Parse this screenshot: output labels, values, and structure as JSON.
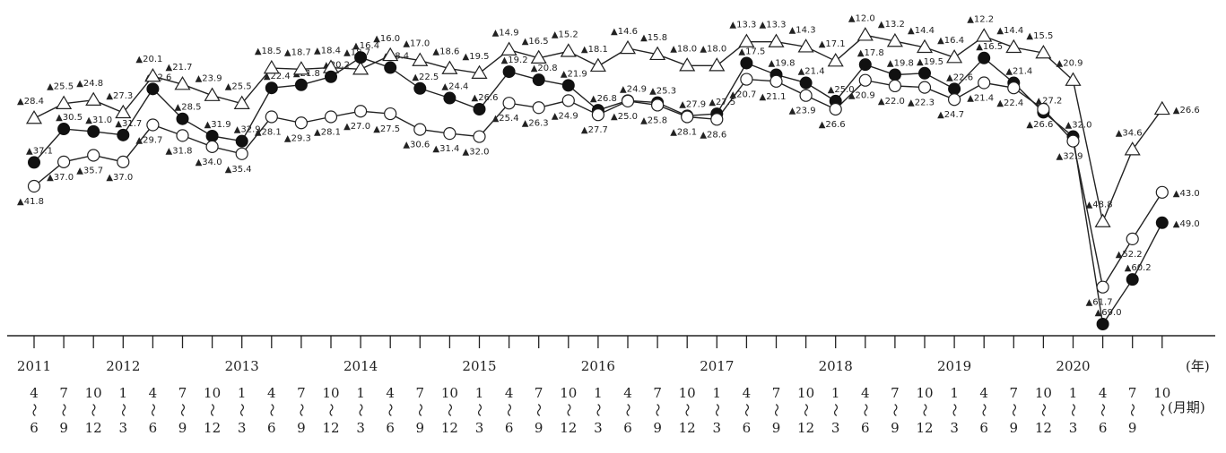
{
  "chart_data": {
    "type": "line",
    "x_axis": {
      "years": [
        "2011",
        "2012",
        "2013",
        "2014",
        "2015",
        "2016",
        "2017",
        "2018",
        "2019",
        "2020"
      ],
      "year_unit": "(年)",
      "period_unit": "(月期)",
      "periods": [
        [
          "4",
          "6"
        ],
        [
          "7",
          "9"
        ],
        [
          "10",
          "12"
        ],
        [
          "1",
          "3"
        ],
        [
          "4",
          "6"
        ],
        [
          "7",
          "9"
        ],
        [
          "10",
          "12"
        ],
        [
          "1",
          "3"
        ],
        [
          "4",
          "6"
        ],
        [
          "7",
          "9"
        ],
        [
          "10",
          "12"
        ],
        [
          "1",
          "3"
        ],
        [
          "4",
          "6"
        ],
        [
          "7",
          "9"
        ],
        [
          "10",
          "12"
        ],
        [
          "1",
          "3"
        ],
        [
          "4",
          "6"
        ],
        [
          "7",
          "9"
        ],
        [
          "10",
          "12"
        ],
        [
          "1",
          "3"
        ],
        [
          "4",
          "6"
        ],
        [
          "7",
          "9"
        ],
        [
          "10",
          "12"
        ],
        [
          "1",
          "3"
        ],
        [
          "4",
          "6"
        ],
        [
          "7",
          "9"
        ],
        [
          "10",
          "12"
        ],
        [
          "1",
          "3"
        ],
        [
          "4",
          "6"
        ],
        [
          "7",
          "9"
        ],
        [
          "10",
          "12"
        ],
        [
          "1",
          "3"
        ],
        [
          "4",
          "6"
        ],
        [
          "7",
          "9"
        ],
        [
          "10",
          "12"
        ],
        [
          "1",
          "3"
        ],
        [
          "4",
          "6"
        ],
        [
          "7",
          "9"
        ],
        [
          "10",
          ""
        ]
      ],
      "year_start_index": [
        0,
        3,
        7,
        11,
        15,
        19,
        23,
        27,
        31,
        35
      ]
    },
    "ylim": [
      -70,
      -10
    ],
    "series": [
      {
        "marker": "triangle",
        "values": [
          -28.4,
          -25.5,
          -24.8,
          -27.3,
          -20.1,
          -21.7,
          -23.9,
          -25.5,
          -18.5,
          -18.7,
          -18.4,
          -18.7,
          -16.0,
          -17.0,
          -18.6,
          -19.5,
          -14.9,
          -16.5,
          -15.2,
          -18.1,
          -14.6,
          -15.8,
          -18.0,
          -18.0,
          -13.3,
          -13.3,
          -14.3,
          -17.1,
          -12.0,
          -13.2,
          -14.4,
          -16.4,
          -12.2,
          -14.4,
          -15.5,
          -20.9,
          -48.8,
          -34.6,
          -26.6
        ],
        "labels": [
          "▲28.4",
          "▲25.5",
          "▲24.8",
          "▲27.3",
          "▲20.1",
          "▲21.7",
          "▲23.9",
          "▲25.5",
          "▲18.5",
          "▲18.7",
          "▲18.4",
          "▲18.7",
          "▲16.0",
          "▲17.0",
          "▲18.6",
          "▲19.5",
          "▲14.9",
          "▲16.5",
          "▲15.2",
          "▲18.1",
          "▲14.6",
          "▲15.8",
          "▲18.0",
          "▲18.0",
          "▲13.3",
          "▲13.3",
          "▲14.3",
          "▲17.1",
          "▲12.0",
          "▲13.2",
          "▲14.4",
          "▲16.4",
          "▲12.2",
          "▲14.4",
          "▲15.5",
          "▲20.9",
          "▲48.8",
          "▲34.6",
          "▲26.6"
        ]
      },
      {
        "marker": "filled-circle",
        "values": [
          -37.1,
          -30.5,
          -31.0,
          -31.7,
          -22.6,
          -28.5,
          -31.9,
          -32.9,
          -22.4,
          -21.8,
          -20.2,
          -16.4,
          -18.4,
          -22.5,
          -24.4,
          -26.6,
          -19.2,
          -20.8,
          -21.9,
          -26.8,
          -24.9,
          -25.3,
          -27.9,
          -27.5,
          -17.5,
          -19.8,
          -21.4,
          -25.0,
          -17.8,
          -19.8,
          -19.5,
          -22.6,
          -16.5,
          -21.4,
          -27.2,
          -32.0,
          -69.0,
          -60.2,
          -49.0
        ],
        "labels": [
          "▲37.1",
          "▲30.5",
          "▲31.0",
          "▲31.7",
          "▲22.6",
          "▲28.5",
          "▲31.9",
          "▲32.9",
          "▲22.4",
          "▲21.8",
          "▲20.2",
          "▲16.4",
          "▲18.4",
          "▲22.5",
          "▲24.4",
          "▲26.6",
          "▲19.2",
          "▲20.8",
          "▲21.9",
          "▲26.8",
          "▲24.9",
          "▲25.3",
          "▲27.9",
          "▲27.5",
          "▲17.5",
          "▲19.8",
          "▲21.4",
          "▲25.0",
          "▲17.8",
          "▲19.8",
          "▲19.5",
          "▲22.6",
          "▲16.5",
          "▲21.4",
          "▲27.2",
          "▲32.0",
          "▲69.0",
          "▲60.2",
          "▲49.0"
        ]
      },
      {
        "marker": "open-circle",
        "values": [
          -41.8,
          -37.0,
          -35.7,
          -37.0,
          -29.7,
          -31.8,
          -34.0,
          -35.4,
          -28.1,
          -29.3,
          -28.1,
          -27.0,
          -27.5,
          -30.6,
          -31.4,
          -32.0,
          -25.4,
          -26.3,
          -24.9,
          -27.7,
          -25.0,
          -25.8,
          -28.1,
          -28.6,
          -20.7,
          -21.1,
          -23.9,
          -26.6,
          -20.9,
          -22.0,
          -22.3,
          -24.7,
          -21.4,
          -22.4,
          -26.6,
          -32.9,
          -61.7,
          -52.2,
          -43.0
        ],
        "labels": [
          "▲41.8",
          "▲37.0",
          "▲35.7",
          "▲37.0",
          "▲29.7",
          "▲31.8",
          "▲34.0",
          "▲35.4",
          "▲28.1",
          "▲29.3",
          "▲28.1",
          "▲27.0",
          "▲27.5",
          "▲30.6",
          "▲31.4",
          "▲32.0",
          "▲25.4",
          "▲26.3",
          "▲24.9",
          "▲27.7",
          "▲25.0",
          "▲25.8",
          "▲28.1",
          "▲28.6",
          "▲20.7",
          "▲21.1",
          "▲23.9",
          "▲26.6",
          "▲20.9",
          "▲22.0",
          "▲22.3",
          "▲24.7",
          "▲21.4",
          "▲22.4",
          "▲26.6",
          "▲32.9",
          "▲61.7",
          "▲52.2",
          "▲43.0"
        ]
      }
    ]
  }
}
